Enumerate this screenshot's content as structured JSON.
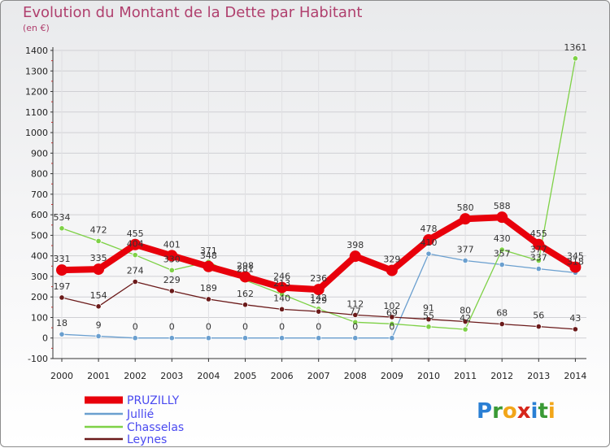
{
  "chart_data": {
    "type": "line",
    "title": "Evolution du Montant de la Dette par Habitant",
    "ylabel": "(en €)",
    "xlabel": "",
    "ylim": [
      -100,
      1400
    ],
    "yticks": [
      -100,
      0,
      100,
      200,
      300,
      400,
      500,
      600,
      700,
      800,
      900,
      1000,
      1100,
      1200,
      1300,
      1400
    ],
    "x": [
      "2000",
      "2001",
      "2002",
      "2003",
      "2004",
      "2005",
      "2006",
      "2007",
      "2008",
      "2009",
      "2010",
      "2011",
      "2012",
      "2013",
      "2014"
    ],
    "grid": true,
    "legend_position": "bottom-left",
    "series": [
      {
        "name": "PRUZILLY",
        "color": "#e8000b",
        "values": [
          331,
          335,
          455,
          401,
          348,
          298,
          246,
          236,
          398,
          329,
          478,
          580,
          588,
          455,
          345
        ]
      },
      {
        "name": "Jullié",
        "color": "#6a9fcf",
        "values": [
          18,
          9,
          0,
          0,
          0,
          0,
          0,
          0,
          0,
          0,
          410,
          377,
          357,
          337,
          318
        ]
      },
      {
        "name": "Chasselas",
        "color": "#7ed146",
        "values": [
          534,
          472,
          404,
          330,
          371,
          281,
          213,
          142,
          77,
          69,
          55,
          42,
          430,
          377,
          1361
        ]
      },
      {
        "name": "Leynes",
        "color": "#6b1a1a",
        "values": [
          197,
          154,
          274,
          229,
          189,
          162,
          140,
          129,
          112,
          102,
          91,
          80,
          68,
          56,
          43
        ]
      }
    ]
  },
  "logo": {
    "text": "Proxiti"
  }
}
